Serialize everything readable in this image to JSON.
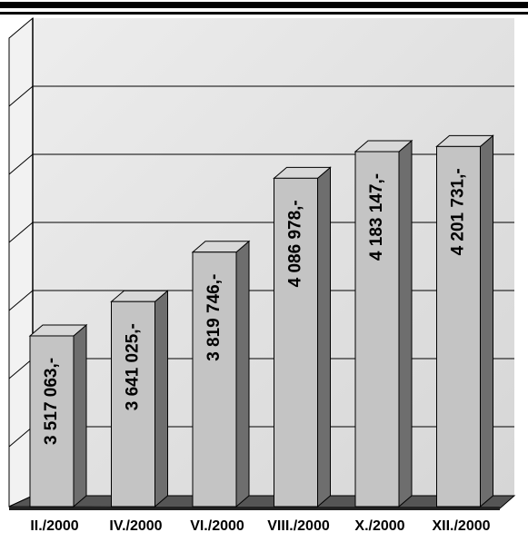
{
  "chart_data": {
    "type": "bar",
    "title": "",
    "xlabel": "",
    "ylabel": "",
    "grid": true,
    "legend": "none",
    "categories": [
      "II./2000",
      "IV./2000",
      "VI./2000",
      "VIII./2000",
      "X./2000",
      "XII./2000"
    ],
    "values": [
      3517063,
      3641025,
      3819746,
      4086978,
      4183147,
      4201731
    ],
    "value_labels": [
      "3 517 063,-",
      "3 641 025,-",
      "3 819 746,-",
      "4 086 978,-",
      "4 183 147,-",
      "4 201 731,-"
    ],
    "ylim": [
      2900000,
      4600000
    ],
    "colors": {
      "bar_front": "#c4c4c4",
      "bar_side": "#6e6e6e",
      "bar_top": "#d8d8d8",
      "background": "#e3e3e3",
      "frame": "#000000"
    }
  }
}
